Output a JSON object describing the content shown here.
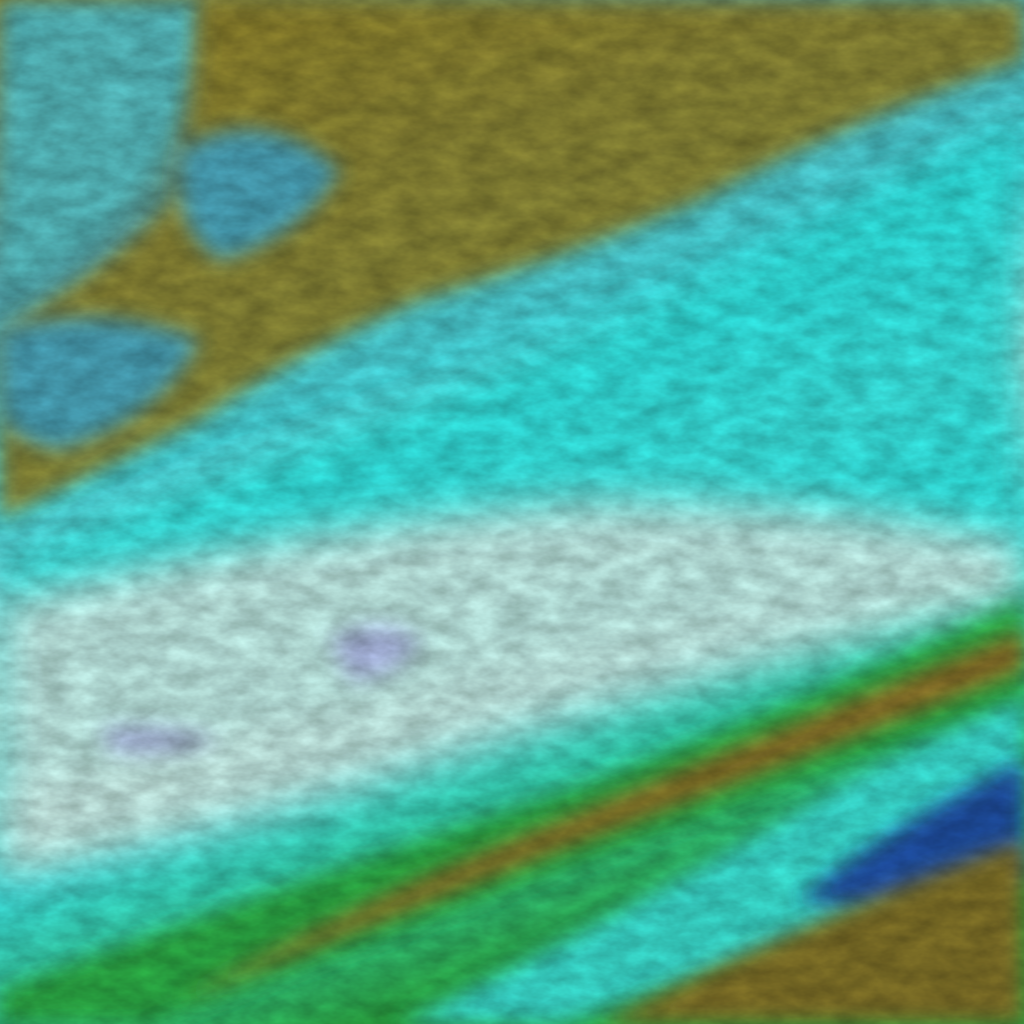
{
  "image": {
    "kind": "false-color satellite imagery",
    "palette": {
      "cloud_bright": "#e8fff8",
      "cloud_cyan": "#2ff4f0",
      "ice_blue": "#3db6e8",
      "land_olive": "#9a8a2c",
      "land_green": "#2fb64a",
      "deep_blue": "#1a3aa8",
      "sea_teal": "#4fc0c4",
      "lilac": "#a8a8e8"
    }
  }
}
